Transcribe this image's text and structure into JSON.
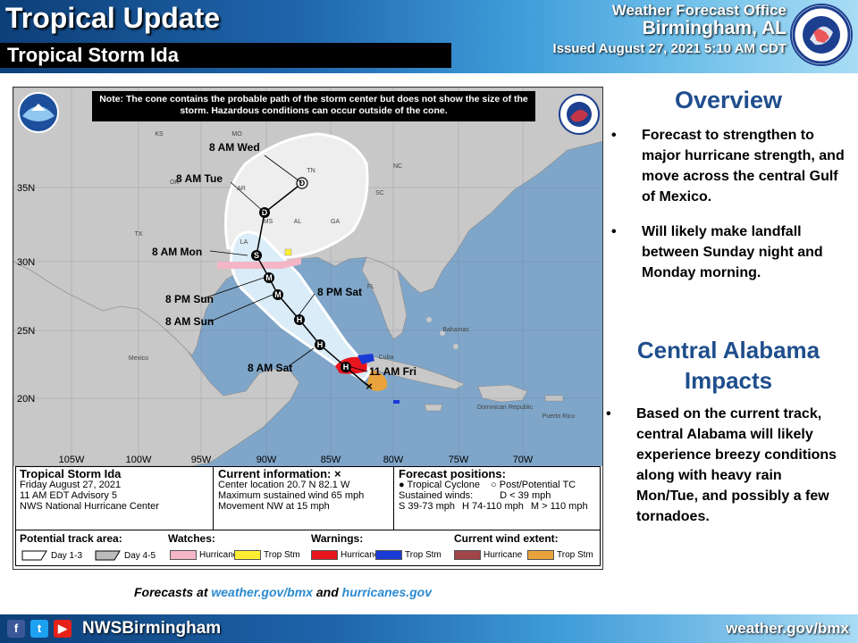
{
  "header": {
    "title": "Tropical Update",
    "storm_name": "Tropical Storm Ida",
    "office_line1": "Weather Forecast Office",
    "office_line2": "Birmingham, AL",
    "issued": "Issued August 27, 2021 5:10 AM CDT"
  },
  "map": {
    "note": "Note: The cone contains the probable path of the storm center but does not show the size of the storm. Hazardous conditions can occur outside of the cone.",
    "lat_labels": [
      "35N",
      "30N",
      "25N",
      "20N"
    ],
    "lon_labels": [
      "105W",
      "100W",
      "95W",
      "90W",
      "85W",
      "80W",
      "75W",
      "70W"
    ],
    "state_labels": [
      "KS",
      "MO",
      "OK",
      "AR",
      "TN",
      "TX",
      "MS",
      "AL",
      "LA",
      "GA",
      "FL",
      "SC",
      "NC"
    ],
    "place_labels": [
      "Mexico",
      "Cuba",
      "Bahamas",
      "Dominican Republic",
      "Puerto Rico"
    ],
    "track_times": [
      "8 AM Wed",
      "8 AM Tue",
      "8 AM Mon",
      "8 PM Sun",
      "8 AM Sun",
      "8 PM Sat",
      "8 AM Sat",
      "11 AM Fri"
    ],
    "marker_letters": [
      "D",
      "D",
      "S",
      "M",
      "M",
      "H",
      "H",
      "H"
    ],
    "colors": {
      "land": "#c8c8c8",
      "water": "#7fa6c9",
      "cone": "#ffffff",
      "hurricane_watch": "#f4b6c7",
      "hurricane_warning": "#e8141e",
      "trop_storm_warning": "#1a3ad6",
      "trop_storm_wind": "#e8a33c",
      "trop_storm_watch": "#ffee33",
      "hurricane_wind": "#a0454a"
    }
  },
  "panel": {
    "storm_title": "Tropical Storm Ida",
    "storm_date": "Friday August 27, 2021",
    "advisory": "11 AM EDT Advisory 5",
    "center": "NWS National Hurricane Center",
    "current_title": "Current information:",
    "current_mark": "×",
    "location": "Center location 20.7 N 82.1 W",
    "max_wind": "Maximum sustained wind 65 mph",
    "movement": "Movement NW at 15 mph",
    "forecast_title": "Forecast positions:",
    "tc_label": "Tropical Cyclone",
    "post_tc_label": "Post/Potential TC",
    "sustained_label": "Sustained winds:",
    "d_label": "D < 39 mph",
    "s_label": "S 39-73 mph",
    "h_label": "H 74-110 mph",
    "m_label": "M > 110 mph",
    "potential_track_head": "Potential track area:",
    "day13": "Day 1-3",
    "day45": "Day 4-5",
    "watches_head": "Watches:",
    "warnings_head": "Warnings:",
    "wind_extent_head": "Current wind extent:",
    "hurricane": "Hurricane",
    "trop_stm": "Trop Stm"
  },
  "overview": {
    "title": "Overview",
    "bullets": [
      "Forecast to strengthen to major hurricane strength, and move across the central Gulf of Mexico.",
      "Will likely make landfall between Sunday night and Monday morning."
    ]
  },
  "impacts": {
    "title_line1": "Central Alabama",
    "title_line2": "Impacts",
    "bullets": [
      "Based on the current track, central Alabama will likely experience breezy conditions along with heavy rain Mon/Tue, and possibly a few tornadoes."
    ]
  },
  "forecast_links": {
    "prefix": "Forecasts at ",
    "link1": "weather.gov/bmx",
    "middle": " and ",
    "link2": "hurricanes.gov"
  },
  "footer": {
    "handle": "NWSBirmingham",
    "site": "weather.gov/bmx",
    "social_icons": [
      "facebook-icon",
      "twitter-icon",
      "youtube-icon"
    ]
  }
}
